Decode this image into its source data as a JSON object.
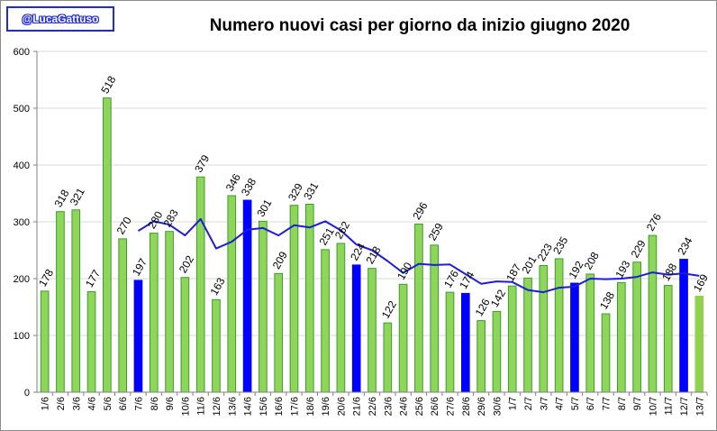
{
  "badge": {
    "label": "@LucaGattuso"
  },
  "chart_data": {
    "type": "bar",
    "title": "Numero nuovi casi per giorno da inizio giugno 2020",
    "xlabel": "",
    "ylabel": "",
    "ylim": [
      0,
      600
    ],
    "yticks": [
      0,
      100,
      200,
      300,
      400,
      500,
      600
    ],
    "grid": true,
    "categories": [
      "1/6",
      "2/6",
      "3/6",
      "4/6",
      "5/6",
      "6/6",
      "7/6",
      "8/6",
      "9/6",
      "10/6",
      "11/6",
      "12/6",
      "13/6",
      "14/6",
      "15/6",
      "16/6",
      "17/6",
      "18/6",
      "19/6",
      "20/6",
      "21/6",
      "22/6",
      "23/6",
      "24/6",
      "25/6",
      "26/6",
      "27/6",
      "28/6",
      "29/6",
      "30/6",
      "1/7",
      "2/7",
      "3/7",
      "4/7",
      "5/7",
      "6/7",
      "7/7",
      "8/7",
      "9/7",
      "10/7",
      "11/7",
      "12/7",
      "13/7"
    ],
    "series": [
      {
        "type": "bar",
        "values": [
          178,
          318,
          321,
          177,
          518,
          270,
          197,
          280,
          283,
          202,
          379,
          163,
          346,
          338,
          301,
          209,
          329,
          331,
          251,
          262,
          224,
          218,
          122,
          190,
          296,
          259,
          176,
          174,
          126,
          142,
          187,
          201,
          223,
          235,
          192,
          208,
          138,
          193,
          229,
          276,
          188,
          234,
          169
        ],
        "colors": [
          "green",
          "green",
          "green",
          "green",
          "green",
          "green",
          "blue",
          "green",
          "green",
          "green",
          "green",
          "green",
          "green",
          "blue",
          "green",
          "green",
          "green",
          "green",
          "green",
          "green",
          "blue",
          "green",
          "green",
          "green",
          "green",
          "green",
          "green",
          "blue",
          "green",
          "green",
          "green",
          "green",
          "green",
          "green",
          "blue",
          "green",
          "green",
          "green",
          "green",
          "green",
          "green",
          "blue",
          "light"
        ]
      },
      {
        "type": "line",
        "values": [
          null,
          null,
          null,
          null,
          null,
          null,
          284,
          301,
          295,
          276,
          305,
          253,
          265,
          286,
          289,
          276,
          294,
          290,
          301,
          285,
          260,
          250,
          231,
          210,
          226,
          224,
          225,
          208,
          191,
          195,
          194,
          180,
          176,
          184,
          186,
          200,
          199,
          200,
          203,
          211,
          207,
          209,
          205
        ]
      }
    ],
    "colors": {
      "bar_green": "#8ed65a",
      "bar_green_edge": "#3f9a2e",
      "bar_blue": "#0000ff",
      "bar_light": "#92d050",
      "line": "#1c1cd9",
      "grid": "#d9d9d9",
      "badge_border": "#1f2bd8"
    }
  }
}
